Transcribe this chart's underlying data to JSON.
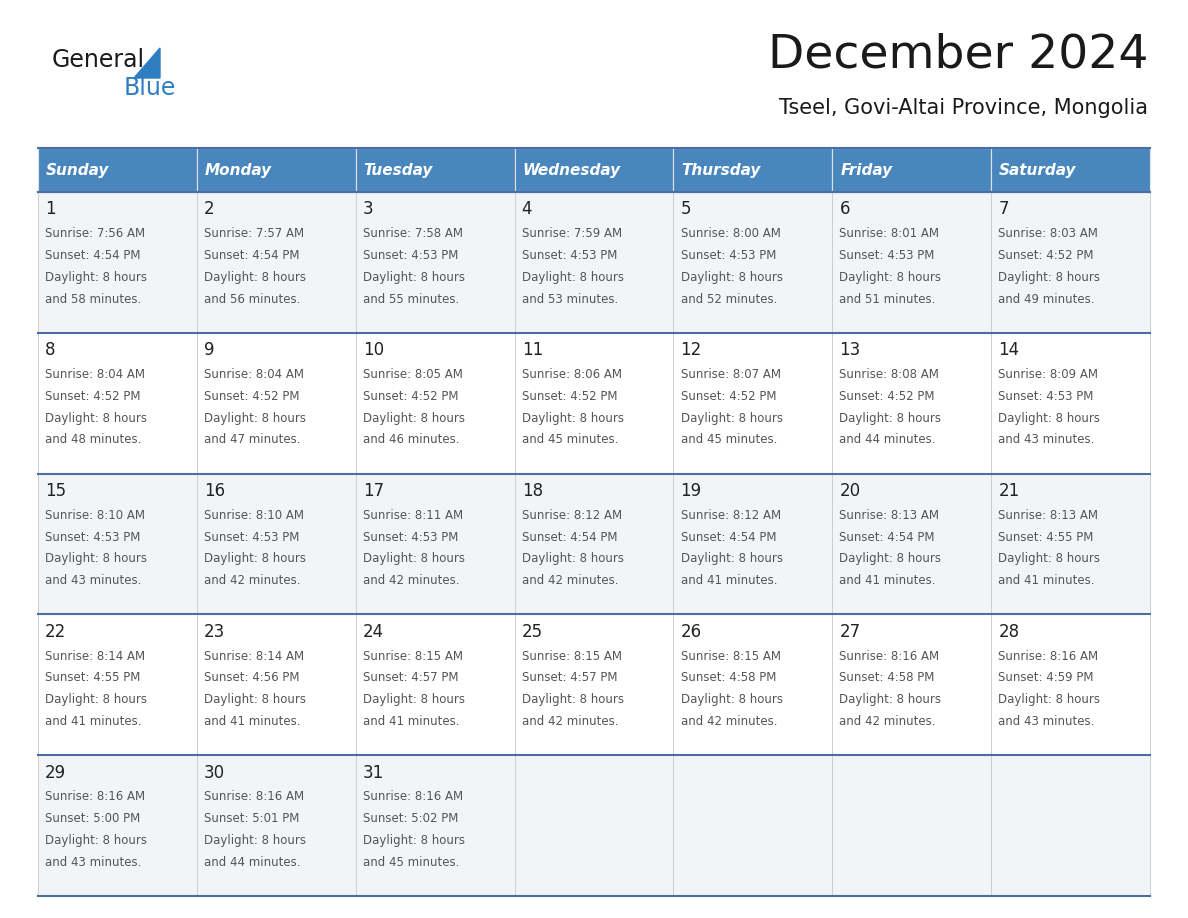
{
  "title": "December 2024",
  "subtitle": "Tseel, Govi-Altai Province, Mongolia",
  "days_of_week": [
    "Sunday",
    "Monday",
    "Tuesday",
    "Wednesday",
    "Thursday",
    "Friday",
    "Saturday"
  ],
  "header_bg": "#4a86be",
  "header_text_color": "#ffffff",
  "cell_bg_odd": "#f2f5f8",
  "cell_bg_even": "#ffffff",
  "row_border_color": "#4a6fa5",
  "col_border_color": "#c8c8c8",
  "day_num_color": "#222222",
  "text_color": "#555555",
  "calendar_data": [
    [
      {
        "day": 1,
        "sunrise": "7:56 AM",
        "sunset": "4:54 PM",
        "daylight_h": "8 hours",
        "daylight_m": "and 58 minutes."
      },
      {
        "day": 2,
        "sunrise": "7:57 AM",
        "sunset": "4:54 PM",
        "daylight_h": "8 hours",
        "daylight_m": "and 56 minutes."
      },
      {
        "day": 3,
        "sunrise": "7:58 AM",
        "sunset": "4:53 PM",
        "daylight_h": "8 hours",
        "daylight_m": "and 55 minutes."
      },
      {
        "day": 4,
        "sunrise": "7:59 AM",
        "sunset": "4:53 PM",
        "daylight_h": "8 hours",
        "daylight_m": "and 53 minutes."
      },
      {
        "day": 5,
        "sunrise": "8:00 AM",
        "sunset": "4:53 PM",
        "daylight_h": "8 hours",
        "daylight_m": "and 52 minutes."
      },
      {
        "day": 6,
        "sunrise": "8:01 AM",
        "sunset": "4:53 PM",
        "daylight_h": "8 hours",
        "daylight_m": "and 51 minutes."
      },
      {
        "day": 7,
        "sunrise": "8:03 AM",
        "sunset": "4:52 PM",
        "daylight_h": "8 hours",
        "daylight_m": "and 49 minutes."
      }
    ],
    [
      {
        "day": 8,
        "sunrise": "8:04 AM",
        "sunset": "4:52 PM",
        "daylight_h": "8 hours",
        "daylight_m": "and 48 minutes."
      },
      {
        "day": 9,
        "sunrise": "8:04 AM",
        "sunset": "4:52 PM",
        "daylight_h": "8 hours",
        "daylight_m": "and 47 minutes."
      },
      {
        "day": 10,
        "sunrise": "8:05 AM",
        "sunset": "4:52 PM",
        "daylight_h": "8 hours",
        "daylight_m": "and 46 minutes."
      },
      {
        "day": 11,
        "sunrise": "8:06 AM",
        "sunset": "4:52 PM",
        "daylight_h": "8 hours",
        "daylight_m": "and 45 minutes."
      },
      {
        "day": 12,
        "sunrise": "8:07 AM",
        "sunset": "4:52 PM",
        "daylight_h": "8 hours",
        "daylight_m": "and 45 minutes."
      },
      {
        "day": 13,
        "sunrise": "8:08 AM",
        "sunset": "4:52 PM",
        "daylight_h": "8 hours",
        "daylight_m": "and 44 minutes."
      },
      {
        "day": 14,
        "sunrise": "8:09 AM",
        "sunset": "4:53 PM",
        "daylight_h": "8 hours",
        "daylight_m": "and 43 minutes."
      }
    ],
    [
      {
        "day": 15,
        "sunrise": "8:10 AM",
        "sunset": "4:53 PM",
        "daylight_h": "8 hours",
        "daylight_m": "and 43 minutes."
      },
      {
        "day": 16,
        "sunrise": "8:10 AM",
        "sunset": "4:53 PM",
        "daylight_h": "8 hours",
        "daylight_m": "and 42 minutes."
      },
      {
        "day": 17,
        "sunrise": "8:11 AM",
        "sunset": "4:53 PM",
        "daylight_h": "8 hours",
        "daylight_m": "and 42 minutes."
      },
      {
        "day": 18,
        "sunrise": "8:12 AM",
        "sunset": "4:54 PM",
        "daylight_h": "8 hours",
        "daylight_m": "and 42 minutes."
      },
      {
        "day": 19,
        "sunrise": "8:12 AM",
        "sunset": "4:54 PM",
        "daylight_h": "8 hours",
        "daylight_m": "and 41 minutes."
      },
      {
        "day": 20,
        "sunrise": "8:13 AM",
        "sunset": "4:54 PM",
        "daylight_h": "8 hours",
        "daylight_m": "and 41 minutes."
      },
      {
        "day": 21,
        "sunrise": "8:13 AM",
        "sunset": "4:55 PM",
        "daylight_h": "8 hours",
        "daylight_m": "and 41 minutes."
      }
    ],
    [
      {
        "day": 22,
        "sunrise": "8:14 AM",
        "sunset": "4:55 PM",
        "daylight_h": "8 hours",
        "daylight_m": "and 41 minutes."
      },
      {
        "day": 23,
        "sunrise": "8:14 AM",
        "sunset": "4:56 PM",
        "daylight_h": "8 hours",
        "daylight_m": "and 41 minutes."
      },
      {
        "day": 24,
        "sunrise": "8:15 AM",
        "sunset": "4:57 PM",
        "daylight_h": "8 hours",
        "daylight_m": "and 41 minutes."
      },
      {
        "day": 25,
        "sunrise": "8:15 AM",
        "sunset": "4:57 PM",
        "daylight_h": "8 hours",
        "daylight_m": "and 42 minutes."
      },
      {
        "day": 26,
        "sunrise": "8:15 AM",
        "sunset": "4:58 PM",
        "daylight_h": "8 hours",
        "daylight_m": "and 42 minutes."
      },
      {
        "day": 27,
        "sunrise": "8:16 AM",
        "sunset": "4:58 PM",
        "daylight_h": "8 hours",
        "daylight_m": "and 42 minutes."
      },
      {
        "day": 28,
        "sunrise": "8:16 AM",
        "sunset": "4:59 PM",
        "daylight_h": "8 hours",
        "daylight_m": "and 43 minutes."
      }
    ],
    [
      {
        "day": 29,
        "sunrise": "8:16 AM",
        "sunset": "5:00 PM",
        "daylight_h": "8 hours",
        "daylight_m": "and 43 minutes."
      },
      {
        "day": 30,
        "sunrise": "8:16 AM",
        "sunset": "5:01 PM",
        "daylight_h": "8 hours",
        "daylight_m": "and 44 minutes."
      },
      {
        "day": 31,
        "sunrise": "8:16 AM",
        "sunset": "5:02 PM",
        "daylight_h": "8 hours",
        "daylight_m": "and 45 minutes."
      },
      null,
      null,
      null,
      null
    ]
  ],
  "logo_text_general": "General",
  "logo_text_blue": "Blue",
  "logo_color_general": "#1a1a1a",
  "logo_color_blue": "#2e7ec2",
  "logo_triangle_color": "#2e7ec2"
}
